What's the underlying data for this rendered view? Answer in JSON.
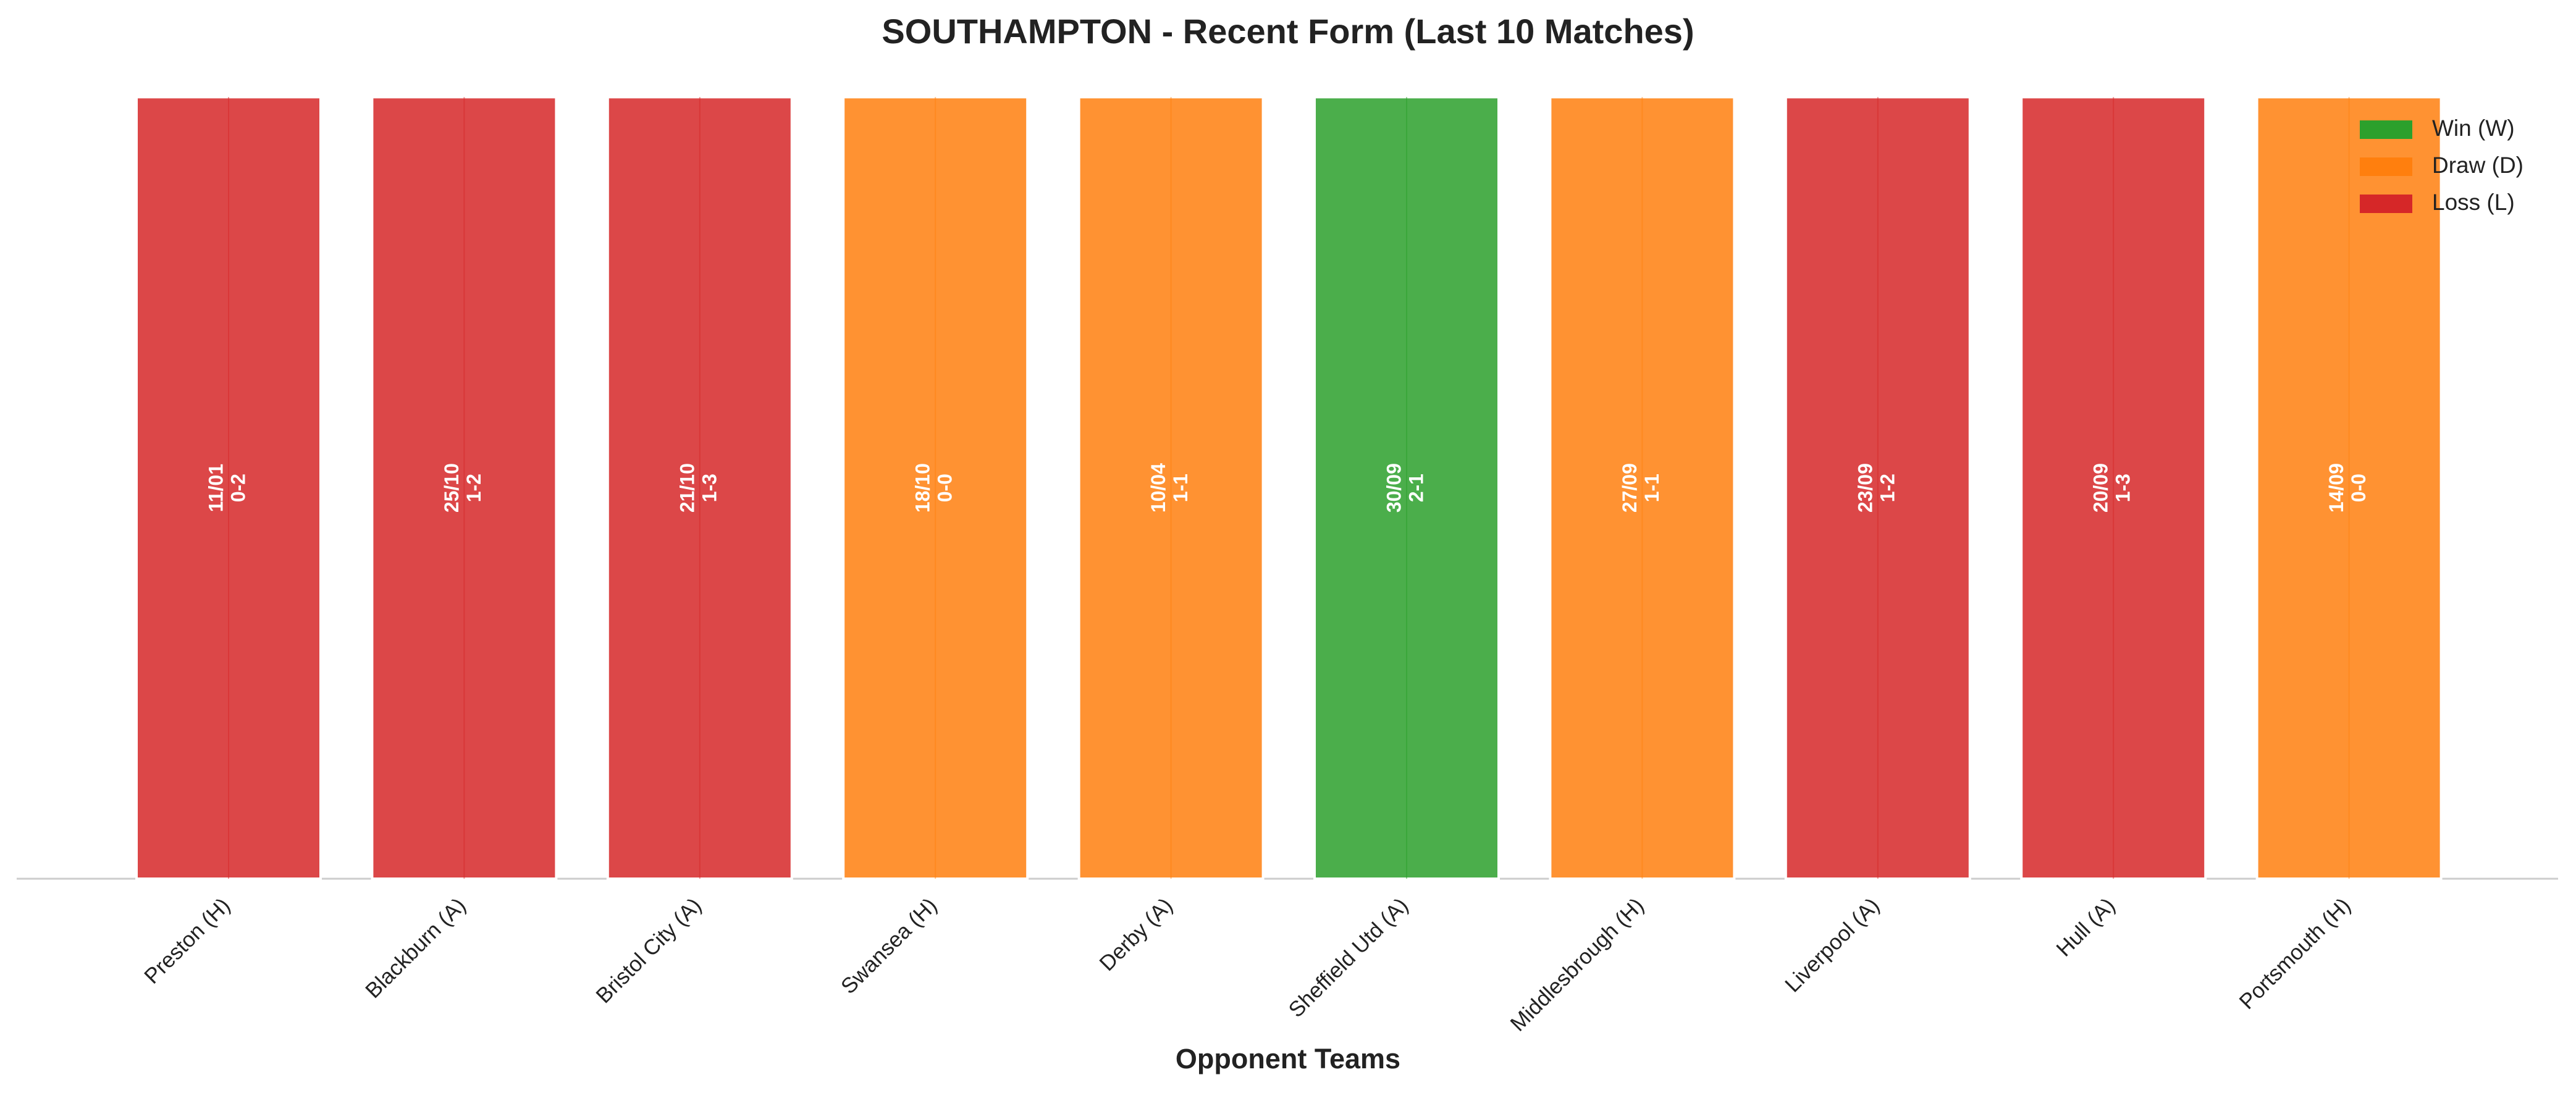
{
  "chart_data": {
    "type": "bar",
    "title": "SOUTHAMPTON - Recent Form (Last 10 Matches)",
    "x_label": "Opponent Teams",
    "categories": [
      "Preston (H)",
      "Blackburn (A)",
      "Bristol City (A)",
      "Swansea (H)",
      "Derby (A)",
      "Sheffield Utd (A)",
      "Middlesbrough (H)",
      "Liverpool (A)",
      "Hull (A)",
      "Portsmouth (H)"
    ],
    "dates": [
      "11/01",
      "25/10",
      "21/10",
      "18/10",
      "10/04",
      "30/09",
      "27/09",
      "23/09",
      "20/09",
      "14/09"
    ],
    "scores": [
      "0-2",
      "1-2",
      "1-3",
      "0-0",
      "1-1",
      "2-1",
      "1-1",
      "1-2",
      "1-3",
      "0-0"
    ],
    "series": [
      {
        "name": "Win (W)",
        "color": "#2ca02c",
        "values": [
          null,
          null,
          null,
          null,
          null,
          1,
          null,
          null,
          null,
          null
        ]
      },
      {
        "name": "Draw (D)",
        "color": "#ff7f0e",
        "values": [
          null,
          null,
          null,
          1,
          1,
          null,
          1,
          null,
          null,
          1
        ]
      },
      {
        "name": "Loss (L)",
        "color": "#d62728",
        "values": [
          1,
          1,
          1,
          null,
          null,
          null,
          null,
          1,
          1,
          null
        ]
      }
    ],
    "ylim": [
      0,
      1.05
    ],
    "legend": "upper right",
    "bar_opacity": 0.85
  }
}
